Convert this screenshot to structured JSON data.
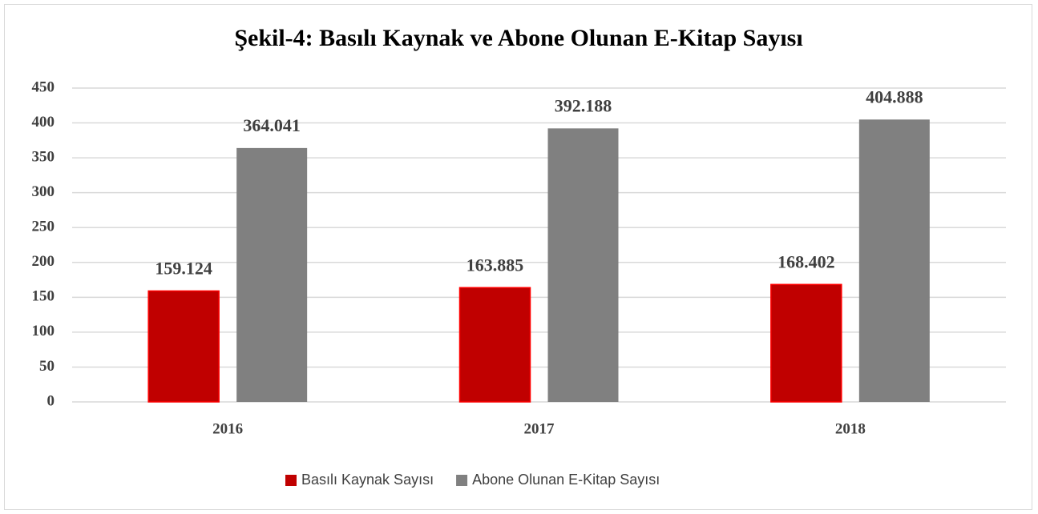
{
  "chart_data": {
    "type": "bar",
    "title": "Şekil-4: Basılı Kaynak ve Abone Olunan E-Kitap Sayısı",
    "categories": [
      "2016",
      "2017",
      "2018"
    ],
    "series": [
      {
        "name": "Basılı Kaynak Sayısı",
        "color": "#c00000",
        "values": [
          159.124,
          163.885,
          168.402
        ]
      },
      {
        "name": "Abone Olunan E-Kitap Sayısı",
        "color": "#808080",
        "values": [
          364.041,
          392.188,
          404.888
        ]
      }
    ],
    "ylim": [
      0,
      450
    ],
    "yticks": [
      0,
      50,
      100,
      150,
      200,
      250,
      300,
      350,
      400,
      450
    ],
    "grid": true,
    "legend": "bottom"
  }
}
